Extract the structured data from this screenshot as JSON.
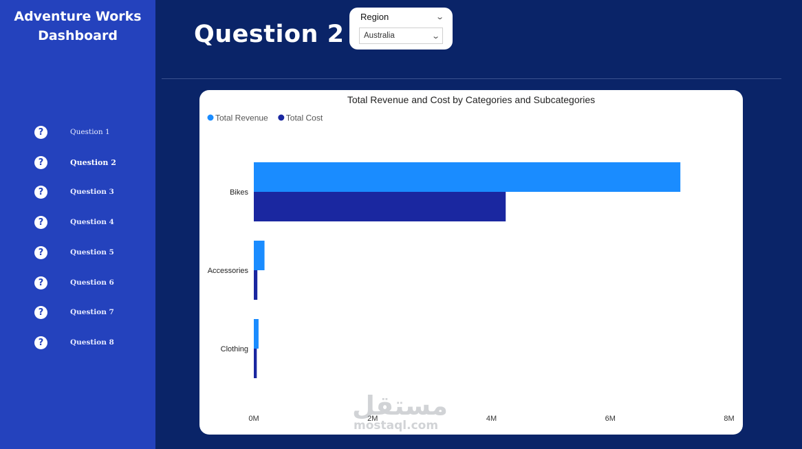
{
  "app": {
    "title_line1": "Adventure Works",
    "title_line2": "Dashboard"
  },
  "sidebar": {
    "items": [
      {
        "label": "Question 1",
        "icon": "help-icon"
      },
      {
        "label": "Question 2",
        "icon": "help-icon",
        "active": true
      },
      {
        "label": "Question 3",
        "icon": "help-icon"
      },
      {
        "label": "Question 4",
        "icon": "help-icon"
      },
      {
        "label": "Question 5",
        "icon": "help-icon"
      },
      {
        "label": "Question 6",
        "icon": "help-icon"
      },
      {
        "label": "Question 7",
        "icon": "help-icon"
      },
      {
        "label": "Question 8",
        "icon": "help-icon"
      }
    ]
  },
  "page": {
    "title": "Question 2"
  },
  "slicer": {
    "title": "Region",
    "selected": "Australia",
    "icon": "chevron-down-icon"
  },
  "colors": {
    "background": "#0a2468",
    "sidebar": "#2442bd",
    "revenue": "#1a8cff",
    "cost": "#1a27a0"
  },
  "watermark": {
    "main": "مستقل",
    "sub": "mostaql.com"
  },
  "chart_data": {
    "type": "bar",
    "orientation": "horizontal",
    "title": "Total Revenue and Cost by Categories and Subcategories",
    "categories": [
      "Bikes",
      "Accessories",
      "Clothing"
    ],
    "series": [
      {
        "name": "Total Revenue",
        "color": "#1a8cff",
        "values": [
          7.18,
          0.18,
          0.08
        ]
      },
      {
        "name": "Total Cost",
        "color": "#1a27a0",
        "values": [
          4.24,
          0.06,
          0.05
        ]
      }
    ],
    "xlim": [
      0,
      8
    ],
    "xticks": [
      "0M",
      "2M",
      "4M",
      "6M",
      "8M"
    ],
    "legend_position": "top-left",
    "grid": false
  }
}
